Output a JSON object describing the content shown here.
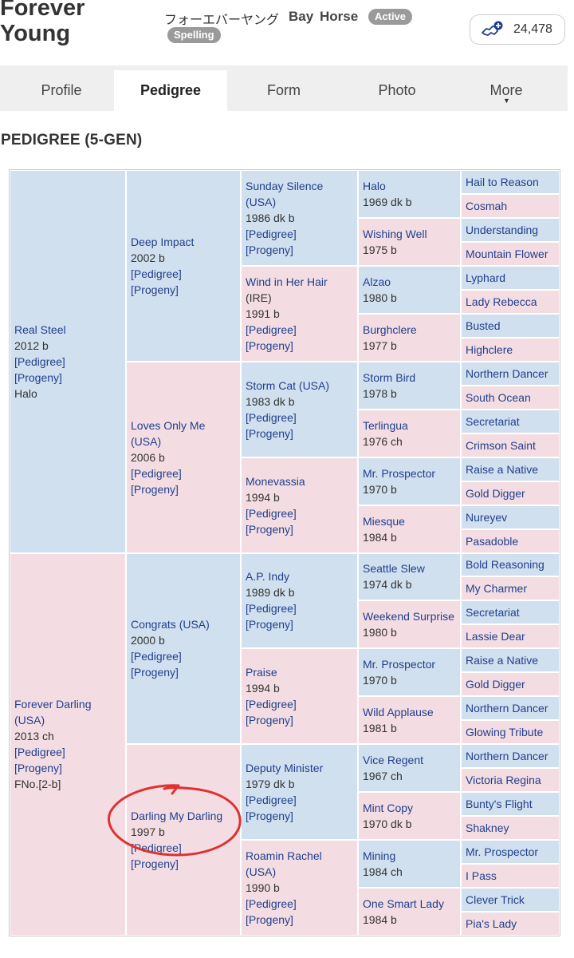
{
  "header": {
    "horse_name_line1": "Forever",
    "horse_name_line2": "Young",
    "kana_name": "フォーエバーヤング",
    "coat": "Bay",
    "sex": "Horse",
    "status_badge": "Active",
    "spelling_badge": "Spelling",
    "favorite_count": "24,478",
    "favorite_icon": "horse-plus-icon"
  },
  "tabs": [
    {
      "label": "Profile"
    },
    {
      "label": "Pedigree",
      "active": true
    },
    {
      "label": "Form"
    },
    {
      "label": "Photo"
    },
    {
      "label": "More"
    }
  ],
  "section_title": "PEDIGREE (5-GEN)",
  "pedigree": {
    "link_pedigree": "[Pedigree]",
    "link_progeny": "[Progeny]",
    "gen1": [
      {
        "name": "Real Steel",
        "info": "2012 b",
        "note": "Halo",
        "sex": "male"
      },
      {
        "name": "Forever Darling (USA)",
        "info": "2013 ch",
        "note": "FNo.[2-b]",
        "sex": "female"
      }
    ],
    "gen2": [
      {
        "name": "Deep Impact",
        "info": "2002 b",
        "sex": "male"
      },
      {
        "name": "Loves Only Me (USA)",
        "info": "2006 b",
        "sex": "female"
      },
      {
        "name": "Congrats (USA)",
        "info": "2000 b",
        "sex": "male"
      },
      {
        "name": "Darling My Darling",
        "info": "1997 b",
        "sex": "female"
      }
    ],
    "gen3": [
      {
        "name": "Sunday Silence (USA)",
        "info": "1986 dk b",
        "sex": "male"
      },
      {
        "name": "Wind in Her Hair",
        "suffix": " (IRE)",
        "info": "1991 b",
        "sex": "female"
      },
      {
        "name": "Storm Cat (USA)",
        "info": "1983 dk b",
        "sex": "male"
      },
      {
        "name": "Monevassia",
        "info": "1994 b",
        "sex": "female"
      },
      {
        "name": "A.P. Indy",
        "info": "1989 dk b",
        "sex": "male"
      },
      {
        "name": "Praise",
        "info": "1994 b",
        "sex": "female"
      },
      {
        "name": "Deputy Minister",
        "info": "1979 dk b",
        "sex": "male"
      },
      {
        "name": "Roamin Rachel (USA)",
        "info": "1990 b",
        "sex": "female"
      }
    ],
    "gen4": [
      {
        "name": "Halo",
        "info": "1969 dk b",
        "sex": "male"
      },
      {
        "name": "Wishing Well",
        "info": "1975 b",
        "sex": "female"
      },
      {
        "name": "Alzao",
        "info": "1980 b",
        "sex": "male"
      },
      {
        "name": "Burghclere",
        "info": "1977 b",
        "sex": "female"
      },
      {
        "name": "Storm Bird",
        "info": "1978 b",
        "sex": "male"
      },
      {
        "name": "Terlingua",
        "info": "1976 ch",
        "sex": "female"
      },
      {
        "name": "Mr. Prospector",
        "info": "1970 b",
        "sex": "male"
      },
      {
        "name": "Miesque",
        "info": "1984 b",
        "sex": "female"
      },
      {
        "name": "Seattle Slew",
        "info": "1974 dk b",
        "sex": "male"
      },
      {
        "name": "Weekend Surprise",
        "info": "1980 b",
        "sex": "female"
      },
      {
        "name": "Mr. Prospector",
        "info": "1970 b",
        "sex": "male"
      },
      {
        "name": "Wild Applause",
        "info": "1981 b",
        "sex": "female"
      },
      {
        "name": "Vice Regent",
        "info": "1967 ch",
        "sex": "male"
      },
      {
        "name": "Mint Copy",
        "info": "1970 dk b",
        "sex": "female"
      },
      {
        "name": "Mining",
        "info": "1984 ch",
        "sex": "male"
      },
      {
        "name": "One Smart Lady",
        "info": "1984 b",
        "sex": "female"
      }
    ],
    "gen5": [
      {
        "name": "Hail to Reason",
        "sex": "male"
      },
      {
        "name": "Cosmah",
        "sex": "female"
      },
      {
        "name": "Understanding",
        "sex": "male"
      },
      {
        "name": "Mountain Flower",
        "sex": "female"
      },
      {
        "name": "Lyphard",
        "sex": "male"
      },
      {
        "name": "Lady Rebecca",
        "sex": "female"
      },
      {
        "name": "Busted",
        "sex": "male"
      },
      {
        "name": "Highclere",
        "sex": "female"
      },
      {
        "name": "Northern Dancer",
        "sex": "male"
      },
      {
        "name": "South Ocean",
        "sex": "female"
      },
      {
        "name": "Secretariat",
        "sex": "male"
      },
      {
        "name": "Crimson Saint",
        "sex": "female"
      },
      {
        "name": "Raise a Native",
        "sex": "male"
      },
      {
        "name": "Gold Digger",
        "sex": "female"
      },
      {
        "name": "Nureyev",
        "sex": "male"
      },
      {
        "name": "Pasadoble",
        "sex": "female"
      },
      {
        "name": "Bold Reasoning",
        "sex": "male"
      },
      {
        "name": "My Charmer",
        "sex": "female"
      },
      {
        "name": "Secretariat",
        "sex": "male"
      },
      {
        "name": "Lassie Dear",
        "sex": "female"
      },
      {
        "name": "Raise a Native",
        "sex": "male"
      },
      {
        "name": "Gold Digger",
        "sex": "female"
      },
      {
        "name": "Northern Dancer",
        "sex": "male"
      },
      {
        "name": "Glowing Tribute",
        "sex": "female"
      },
      {
        "name": "Northern Dancer",
        "sex": "male"
      },
      {
        "name": "Victoria Regina",
        "sex": "female"
      },
      {
        "name": "Bunty's Flight",
        "sex": "male"
      },
      {
        "name": "Shakney",
        "sex": "female"
      },
      {
        "name": "Mr. Prospector",
        "sex": "male"
      },
      {
        "name": "I Pass",
        "sex": "female"
      },
      {
        "name": "Clever Trick",
        "sex": "male"
      },
      {
        "name": "Pia's Lady",
        "sex": "female"
      }
    ]
  },
  "colors": {
    "male_bg": "#d1e0ee",
    "female_bg": "#f4dde2",
    "link": "#1f3f8e",
    "annotation_circle": "#e03030"
  }
}
